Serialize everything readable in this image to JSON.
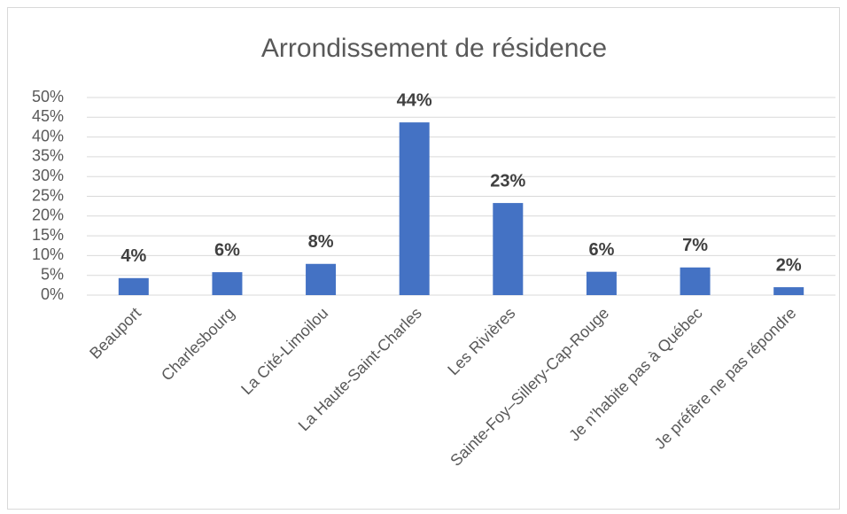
{
  "chart_data": {
    "type": "bar",
    "title": "Arrondissement de résidence",
    "categories": [
      "Beauport",
      "Charlesbourg",
      "La Cité-Limoilou",
      "La Haute-Saint-Charles",
      "Les Rivières",
      "Sainte-Foy–Sillery-Cap-Rouge",
      "Je n’habite pas à Québec",
      "Je préfère ne pas répondre"
    ],
    "values": [
      4.3,
      5.8,
      7.9,
      43.7,
      23.3,
      5.9,
      7.0,
      2.0
    ],
    "value_labels": [
      "4%",
      "6%",
      "8%",
      "44%",
      "23%",
      "6%",
      "7%",
      "2%"
    ],
    "color": "#4472c4",
    "ylim": [
      0,
      50
    ],
    "yticks": [
      {
        "value": 0,
        "label": "0%"
      },
      {
        "value": 5,
        "label": "5%"
      },
      {
        "value": 10,
        "label": "10%"
      },
      {
        "value": 15,
        "label": "15%"
      },
      {
        "value": 20,
        "label": "20%"
      },
      {
        "value": 25,
        "label": "25%"
      },
      {
        "value": 30,
        "label": "30%"
      },
      {
        "value": 35,
        "label": "35%"
      },
      {
        "value": 40,
        "label": "40%"
      },
      {
        "value": 45,
        "label": "45%"
      },
      {
        "value": 50,
        "label": "50%"
      }
    ],
    "grid": true
  }
}
